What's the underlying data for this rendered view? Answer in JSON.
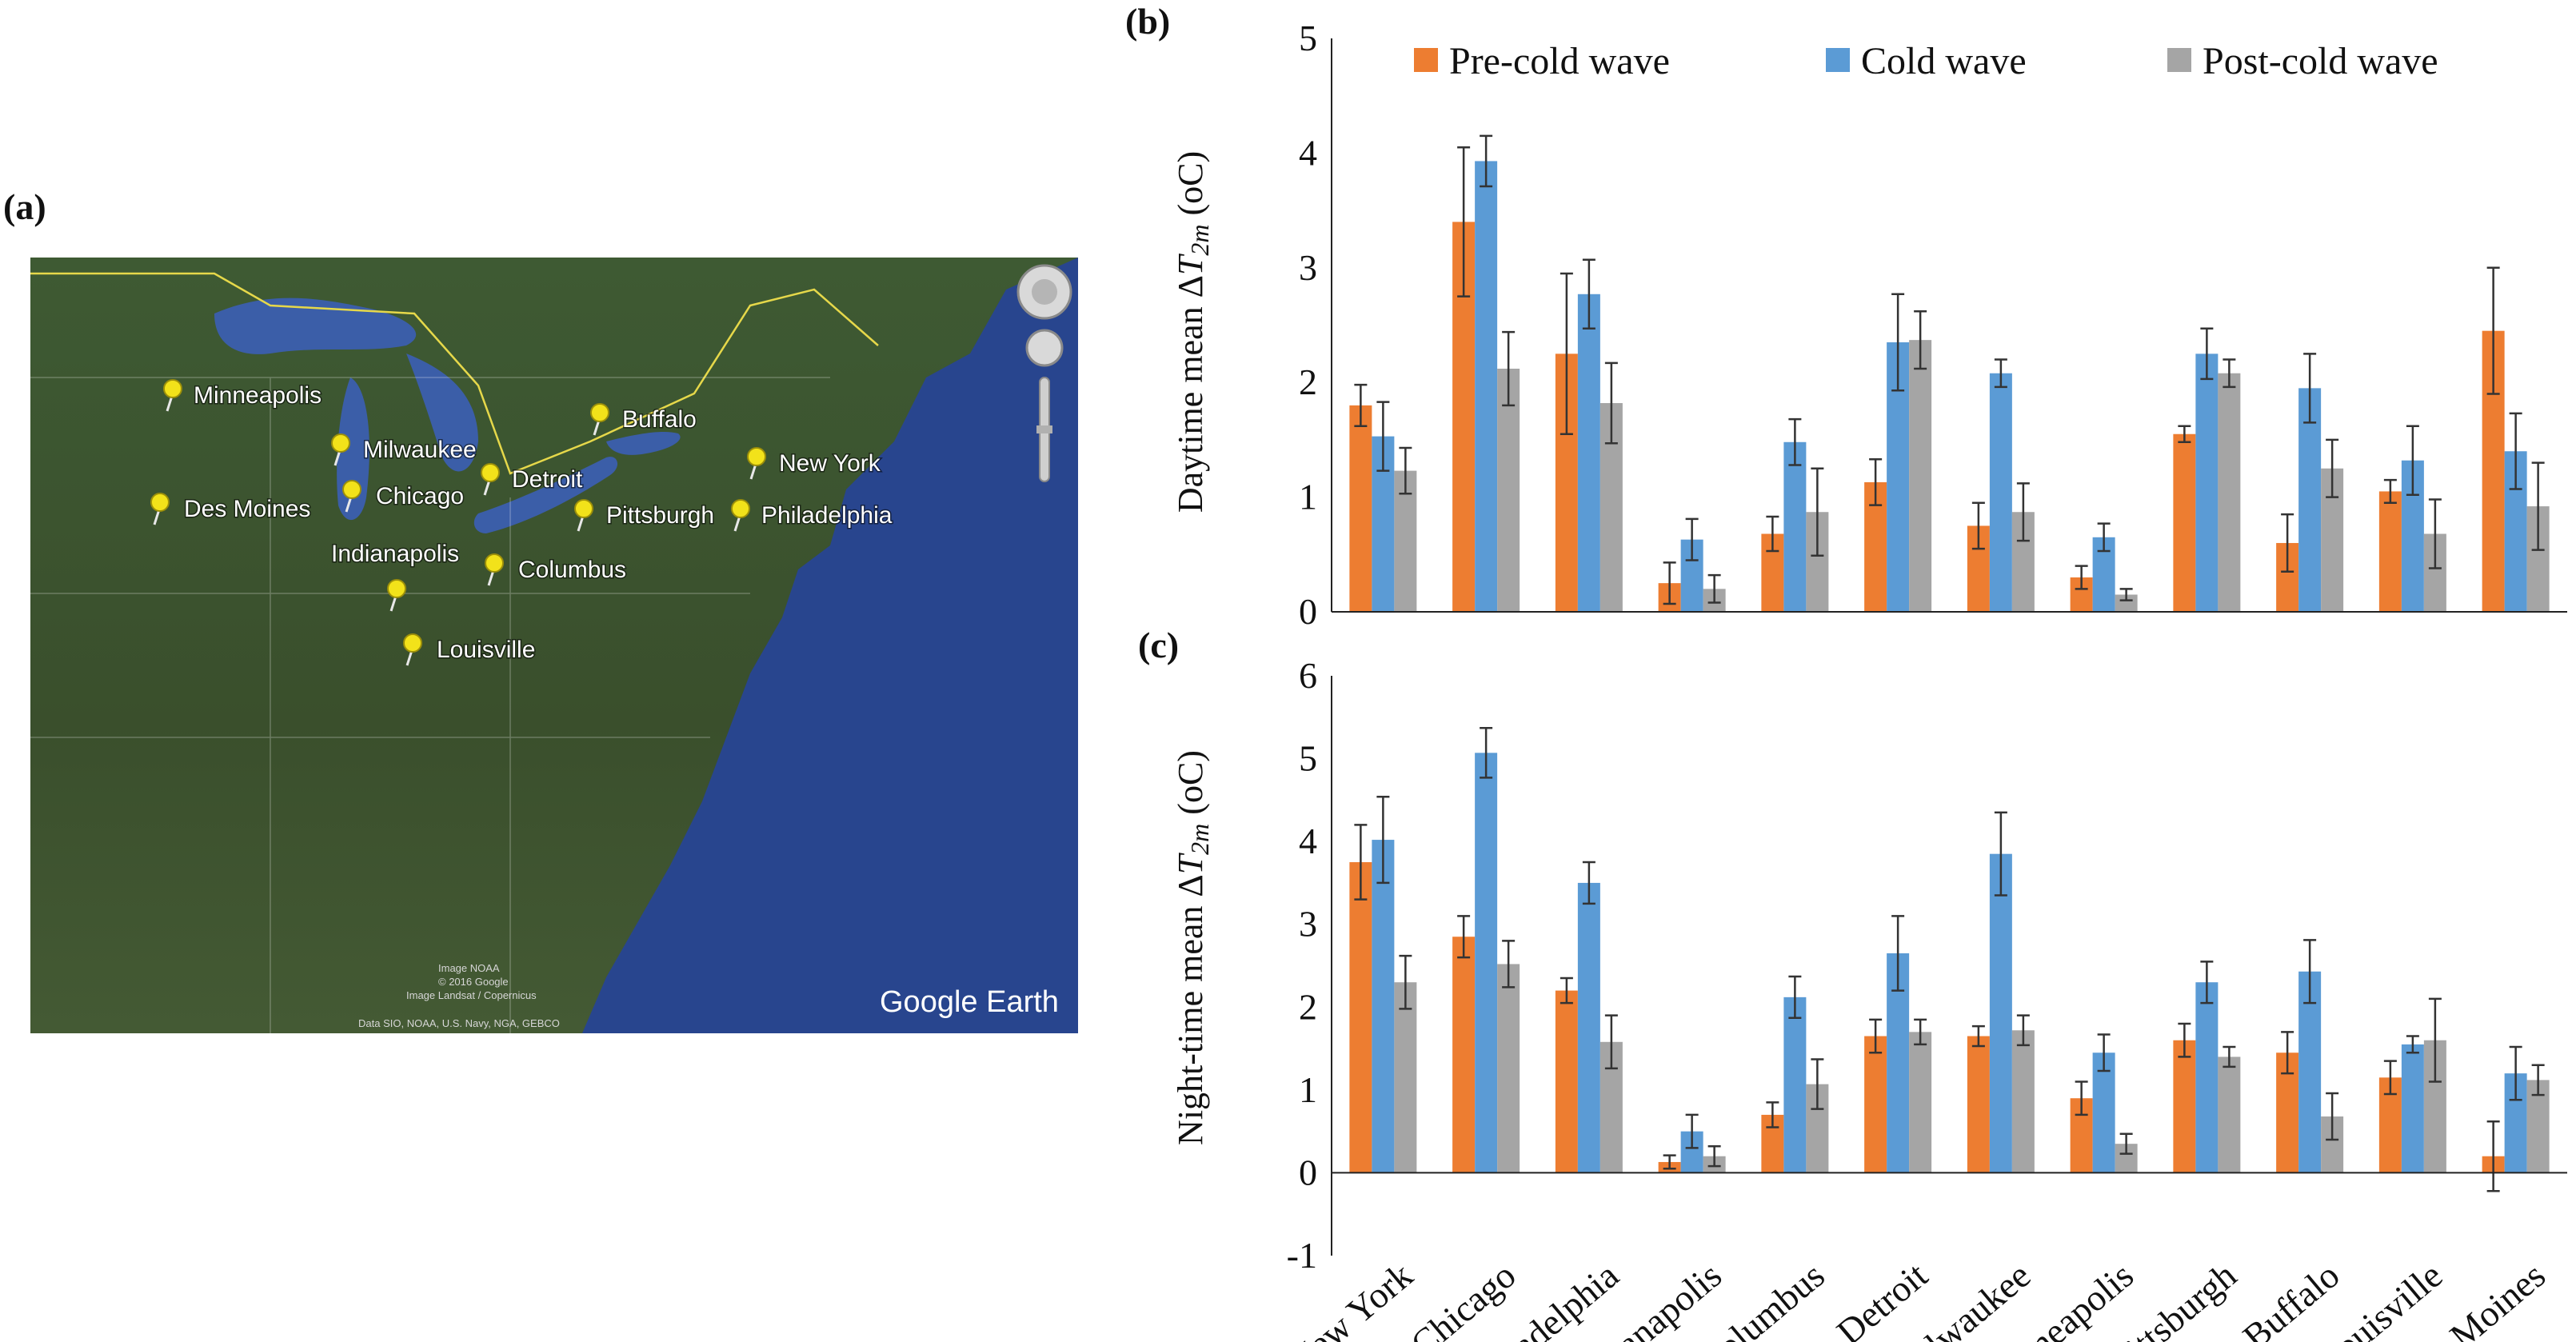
{
  "panel_labels": {
    "a": "(a)",
    "b": "(b)",
    "c": "(c)"
  },
  "map": {
    "attribution": [
      "Image NOAA",
      "© 2016 Google",
      "Image Landsat / Copernicus",
      "Data SIO, NOAA, U.S. Navy, NGA, GEBCO"
    ],
    "logo": "Google Earth",
    "cities": [
      "Minneapolis",
      "Milwaukee",
      "Detroit",
      "Buffalo",
      "New York",
      "Des Moines",
      "Chicago",
      "Pittsburgh",
      "Philadelphia",
      "Indianapolis",
      "Columbus",
      "Louisville"
    ]
  },
  "colors": {
    "pre": "#ED7D31",
    "cold": "#5B9BD5",
    "post": "#A5A5A5",
    "land": "#3d5230",
    "water": "#3c5da8"
  },
  "chart_data": [
    {
      "type": "bar",
      "panel": "(b)",
      "ylabel_pre": "Daytime mean Δ",
      "ylabel_var": "T",
      "ylabel_sub": "2m",
      "ylabel_unit": " (oC)",
      "ylim": [
        0,
        5
      ],
      "yticks": [
        "0",
        "1",
        "2",
        "3",
        "4",
        "5"
      ],
      "legend": [
        "Pre-cold wave",
        "Cold wave",
        "Post-cold wave"
      ],
      "categories": [
        "New York",
        "Chicago",
        "Philadelphia",
        "Indianapolis",
        "Columbus",
        "Detroit",
        "Milwaukee",
        "Minneapolis",
        "Pittsburgh",
        "Buffalo",
        "Louisville",
        "Des Moines"
      ],
      "series": [
        {
          "name": "Pre-cold wave",
          "values": [
            1.8,
            3.4,
            2.25,
            0.25,
            0.68,
            1.13,
            0.75,
            0.3,
            1.55,
            0.6,
            1.05,
            2.45
          ],
          "errors": [
            0.18,
            0.65,
            0.7,
            0.18,
            0.15,
            0.2,
            0.2,
            0.1,
            0.07,
            0.25,
            0.1,
            0.55
          ]
        },
        {
          "name": "Cold wave",
          "values": [
            1.53,
            3.93,
            2.77,
            0.63,
            1.48,
            2.35,
            2.08,
            0.65,
            2.25,
            1.95,
            1.32,
            1.4
          ],
          "errors": [
            0.3,
            0.22,
            0.3,
            0.18,
            0.2,
            0.42,
            0.12,
            0.12,
            0.22,
            0.3,
            0.3,
            0.33
          ]
        },
        {
          "name": "Post-cold wave",
          "values": [
            1.23,
            2.12,
            1.82,
            0.2,
            0.87,
            2.37,
            0.87,
            0.15,
            2.08,
            1.25,
            0.68,
            0.92
          ],
          "errors": [
            0.2,
            0.32,
            0.35,
            0.12,
            0.38,
            0.25,
            0.25,
            0.05,
            0.12,
            0.25,
            0.3,
            0.38
          ]
        }
      ]
    },
    {
      "type": "bar",
      "panel": "(c)",
      "ylabel_pre": "Night-time mean Δ",
      "ylabel_var": "T",
      "ylabel_sub": "2m",
      "ylabel_unit": " (oC)",
      "ylim": [
        -1,
        6
      ],
      "yticks": [
        "-1",
        "0",
        "1",
        "2",
        "3",
        "4",
        "5",
        "6"
      ],
      "categories": [
        "New York",
        "Chicago",
        "Philadelphia",
        "Indianapolis",
        "Columbus",
        "Detroit",
        "Milwaukee",
        "Minneapolis",
        "Pittsburgh",
        "Buffalo",
        "Louisville",
        "Des Moines"
      ],
      "series": [
        {
          "name": "Pre-cold wave",
          "values": [
            3.75,
            2.85,
            2.2,
            0.13,
            0.7,
            1.65,
            1.65,
            0.9,
            1.6,
            1.45,
            1.15,
            0.2
          ],
          "errors": [
            0.45,
            0.25,
            0.15,
            0.08,
            0.15,
            0.2,
            0.12,
            0.2,
            0.2,
            0.25,
            0.2,
            0.42
          ]
        },
        {
          "name": "Cold wave",
          "values": [
            4.02,
            5.07,
            3.5,
            0.5,
            2.12,
            2.65,
            3.85,
            1.45,
            2.3,
            2.43,
            1.55,
            1.2
          ],
          "errors": [
            0.52,
            0.3,
            0.25,
            0.2,
            0.25,
            0.45,
            0.5,
            0.22,
            0.25,
            0.38,
            0.1,
            0.32
          ]
        },
        {
          "name": "Post-cold wave",
          "values": [
            2.3,
            2.52,
            1.58,
            0.2,
            1.07,
            1.7,
            1.72,
            0.35,
            1.4,
            0.68,
            1.6,
            1.12
          ],
          "errors": [
            0.32,
            0.28,
            0.32,
            0.12,
            0.3,
            0.15,
            0.18,
            0.12,
            0.12,
            0.28,
            0.5,
            0.18
          ]
        }
      ]
    }
  ]
}
